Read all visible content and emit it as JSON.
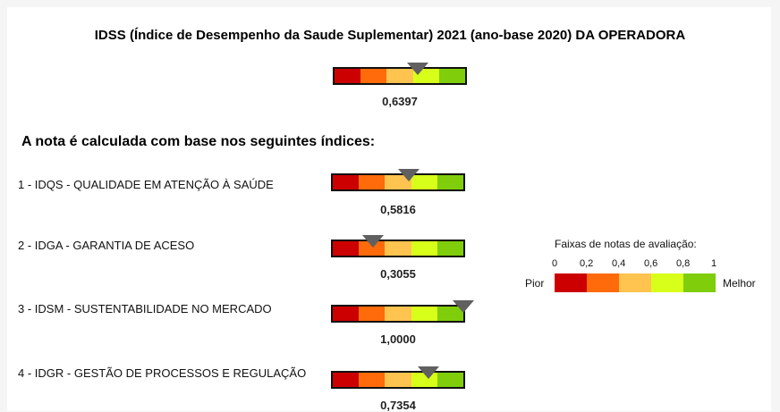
{
  "title": "IDSS (Índice de Desempenho da Saude Suplementar) 2021 (ano-base 2020) DA OPERADORA",
  "colors": [
    "#cc0000",
    "#ff6a0a",
    "#ffc34f",
    "#d8ff1a",
    "#7fcd0b"
  ],
  "overall": {
    "value": 0.6397,
    "value_text": "0,6397"
  },
  "subtitle": "A nota é calculada com base nos seguintes índices:",
  "indices": [
    {
      "label": "1 - IDQS - QUALIDADE EM ATENÇÃO À SAÚDE",
      "value": 0.5816,
      "value_text": "0,5816"
    },
    {
      "label": "2 - IDGA - GARANTIA DE ACESO",
      "value": 0.3055,
      "value_text": "0,3055"
    },
    {
      "label": "3 - IDSM - SUSTENTABILIDADE NO MERCADO",
      "value": 1.0,
      "value_text": "1,0000"
    },
    {
      "label": "4 - IDGR - GESTÃO DE PROCESSOS E REGULAÇÃO",
      "value": 0.7354,
      "value_text": "0,7354"
    }
  ],
  "legend": {
    "title": "Faixas de notas de avaliação:",
    "ticks": [
      "0",
      "0,2",
      "0,4",
      "0,6",
      "0,8",
      "1"
    ],
    "low_label": "Pior",
    "high_label": "Melhor"
  }
}
